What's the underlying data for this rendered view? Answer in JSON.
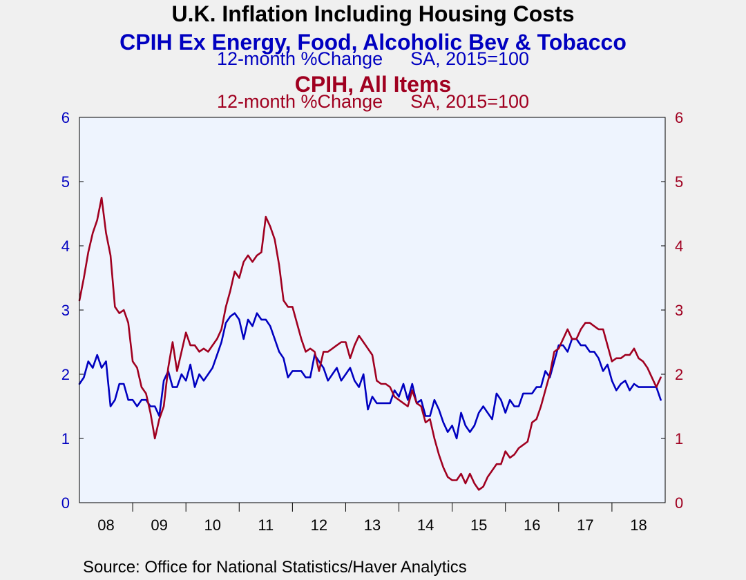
{
  "title": "U.K. Inflation Including Housing Costs",
  "series_blue": {
    "name": "CPIH Ex Energy, Food, Alcoholic Bev & Tobacco",
    "units": "12-month %Change",
    "basis": "SA, 2015=100"
  },
  "series_red": {
    "name": "CPIH, All Items",
    "units": "12-month %Change",
    "basis": "SA, 2015=100"
  },
  "source": "Source:  Office for National Statistics/Haver Analytics",
  "colors": {
    "blue": "#0000c0",
    "red": "#a00020",
    "plot_background": "#eef4fe",
    "page_background": "#f0f0f0"
  },
  "chart_data": {
    "type": "line",
    "x_tick_labels": [
      "08",
      "09",
      "10",
      "11",
      "12",
      "13",
      "14",
      "15",
      "16",
      "17",
      "18"
    ],
    "y_left_ticks": [
      "0",
      "1",
      "2",
      "3",
      "4",
      "5",
      "6"
    ],
    "y_right_ticks": [
      "0",
      "1",
      "2",
      "3",
      "4",
      "5",
      "6"
    ],
    "ylim": [
      0,
      6
    ],
    "x_range": [
      "2008-01",
      "2019-01"
    ],
    "grid": false,
    "series": [
      {
        "name": "CPIH Ex Energy, Food, Alcoholic Bev & Tobacco",
        "color": "#0000c0",
        "start": "2008-01",
        "values": [
          1.85,
          1.95,
          2.2,
          2.1,
          2.3,
          2.1,
          2.2,
          1.5,
          1.6,
          1.85,
          1.85,
          1.6,
          1.6,
          1.5,
          1.6,
          1.6,
          1.5,
          1.5,
          1.35,
          1.9,
          2.05,
          1.8,
          1.8,
          2.0,
          1.9,
          2.15,
          1.8,
          2.0,
          1.9,
          2.0,
          2.1,
          2.3,
          2.5,
          2.8,
          2.9,
          2.95,
          2.85,
          2.55,
          2.85,
          2.75,
          2.95,
          2.85,
          2.85,
          2.75,
          2.55,
          2.35,
          2.25,
          1.95,
          2.05,
          2.05,
          2.05,
          1.95,
          1.95,
          2.3,
          2.2,
          2.1,
          1.9,
          2.0,
          2.1,
          1.9,
          2.0,
          2.1,
          1.9,
          1.8,
          2.0,
          1.45,
          1.65,
          1.55,
          1.55,
          1.55,
          1.55,
          1.75,
          1.65,
          1.85,
          1.6,
          1.85,
          1.55,
          1.6,
          1.35,
          1.35,
          1.6,
          1.45,
          1.25,
          1.1,
          1.2,
          1.0,
          1.4,
          1.2,
          1.1,
          1.2,
          1.4,
          1.5,
          1.4,
          1.3,
          1.7,
          1.6,
          1.4,
          1.6,
          1.5,
          1.5,
          1.7,
          1.7,
          1.7,
          1.8,
          1.8,
          2.05,
          1.95,
          2.2,
          2.45,
          2.45,
          2.35,
          2.55,
          2.55,
          2.45,
          2.45,
          2.35,
          2.35,
          2.25,
          2.05,
          2.15,
          1.9,
          1.75,
          1.85,
          1.9,
          1.75,
          1.85,
          1.8,
          1.8,
          1.8,
          1.8,
          1.8,
          1.6
        ]
      },
      {
        "name": "CPIH, All Items",
        "color": "#a00020",
        "start": "2008-01",
        "values": [
          3.15,
          3.5,
          3.9,
          4.2,
          4.4,
          4.75,
          4.2,
          3.85,
          3.05,
          2.95,
          3.0,
          2.8,
          2.2,
          2.1,
          1.8,
          1.7,
          1.4,
          1.0,
          1.3,
          1.5,
          2.1,
          2.5,
          2.05,
          2.35,
          2.65,
          2.45,
          2.45,
          2.35,
          2.4,
          2.35,
          2.45,
          2.55,
          2.7,
          3.05,
          3.3,
          3.6,
          3.5,
          3.75,
          3.85,
          3.75,
          3.85,
          3.9,
          4.45,
          4.3,
          4.1,
          3.7,
          3.15,
          3.05,
          3.05,
          2.8,
          2.55,
          2.35,
          2.4,
          2.35,
          2.05,
          2.35,
          2.35,
          2.4,
          2.45,
          2.5,
          2.5,
          2.25,
          2.45,
          2.6,
          2.5,
          2.4,
          2.3,
          1.9,
          1.85,
          1.85,
          1.8,
          1.65,
          1.6,
          1.55,
          1.5,
          1.75,
          1.55,
          1.5,
          1.25,
          1.3,
          1.0,
          0.75,
          0.55,
          0.4,
          0.35,
          0.35,
          0.45,
          0.3,
          0.45,
          0.3,
          0.2,
          0.25,
          0.4,
          0.5,
          0.6,
          0.6,
          0.8,
          0.7,
          0.75,
          0.85,
          0.9,
          0.95,
          1.25,
          1.3,
          1.5,
          1.75,
          2.0,
          2.35,
          2.4,
          2.55,
          2.7,
          2.55,
          2.55,
          2.7,
          2.8,
          2.8,
          2.75,
          2.7,
          2.7,
          2.45,
          2.2,
          2.25,
          2.25,
          2.3,
          2.3,
          2.4,
          2.25,
          2.2,
          2.1,
          1.95,
          1.8,
          1.95
        ]
      }
    ]
  }
}
